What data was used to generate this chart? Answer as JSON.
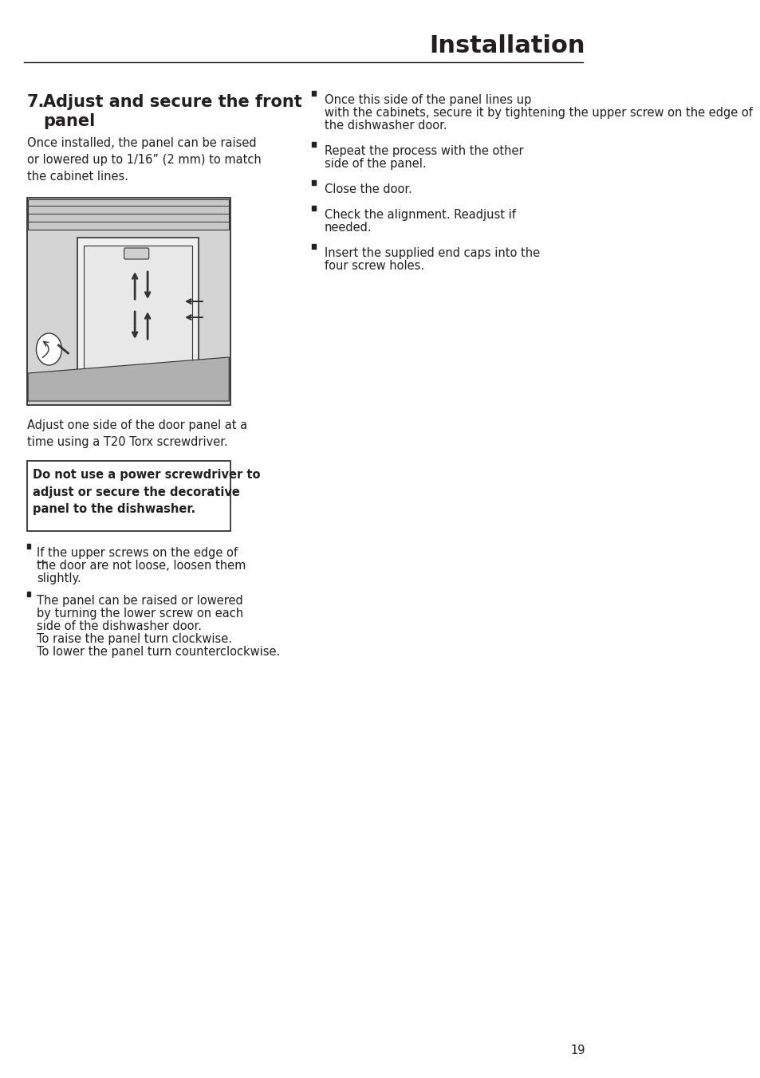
{
  "title": "Installation",
  "section_number": "7.",
  "section_title": "Adjust and secure the front\n   panel",
  "left_intro": "Once installed, the panel can be raised\nor lowered up to 1/16” (2 mm) to match\nthe cabinet lines.",
  "left_caption": "Adjust one side of the door panel at a\ntime using a T20 Torx screwdriver.",
  "warning_text": "Do not use a power screwdriver to\nadjust or secure the decorative\npanel to the dishwasher.",
  "bullet_items_left": [
    {
      "text": "If the upper screws on the edge of\nthe door are not loose, loosen them\nslightly.",
      "underline": null
    },
    {
      "text": "The panel can be raised or lowered\nby turning the lower screw on each\nside of the dishwasher door.\nTo raise the panel turn clockwise.\nTo lower the panel turn counterclockwise.",
      "underline": "lower",
      "underline2": "panel"
    }
  ],
  "bullet_items_right": [
    {
      "text": "Once this side of the panel lines up\nwith the cabinets, secure it by tightening the upper screw on the edge of\nthe dishwasher door.",
      "underline": "upper"
    },
    {
      "text": "Repeat the process with the other\nside of the panel.",
      "underline": null
    },
    {
      "text": "Close the door.",
      "underline": null
    },
    {
      "text": "Check the alignment. Readjust if\nneeded.",
      "underline": null
    },
    {
      "text": "Insert the supplied end caps into the\nfour screw holes.",
      "underline": null
    }
  ],
  "page_number": "19",
  "bg_color": "#ffffff",
  "text_color": "#231f20",
  "line_color": "#231f20",
  "warning_border_color": "#231f20",
  "warning_bg": "#ffffff",
  "image_bg": "#d4d4d4",
  "image_border": "#231f20"
}
